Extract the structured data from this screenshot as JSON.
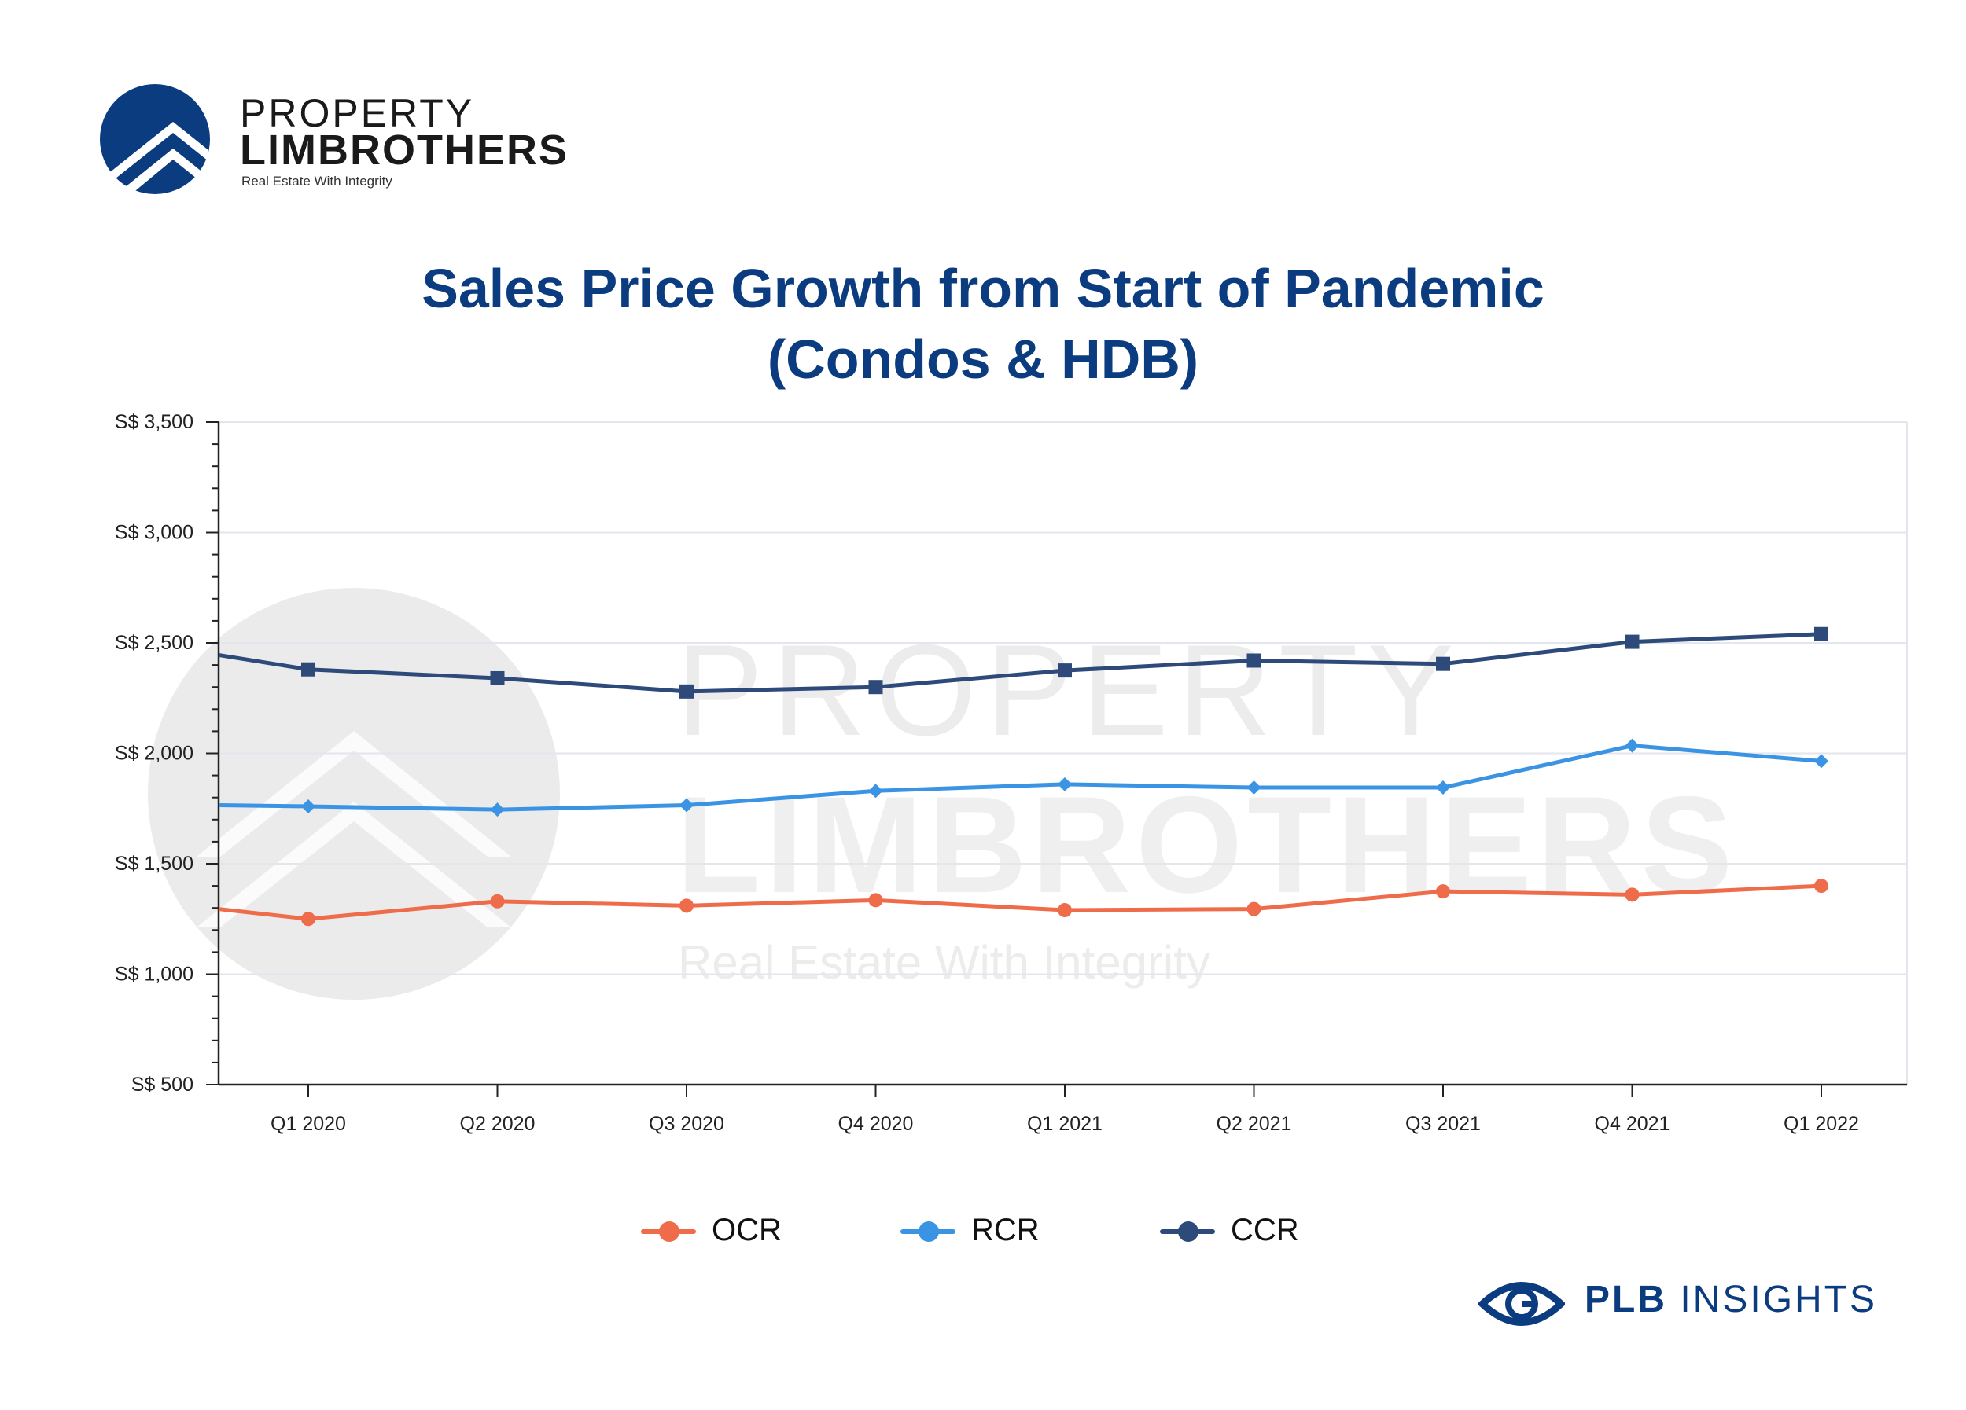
{
  "brand": {
    "name_line1": "PROPERTY",
    "name_line2": "LIMBROTHERS",
    "tagline": "Real Estate With Integrity",
    "watermark_line1": "PROPERTY",
    "watermark_line2": "LIMBROTHERS",
    "watermark_tagline": "Real Estate With Integrity",
    "color": "#0c3c80"
  },
  "insights": {
    "bold": "PLB",
    "rest": " INSIGHTS"
  },
  "chart_data": {
    "type": "line",
    "title": "Sales Price Growth from Start of Pandemic (Condos & HDB)",
    "title_lines": [
      "Sales Price Growth from Start of Pandemic",
      "(Condos & HDB)"
    ],
    "categories": [
      "Q1 2020",
      "Q2 2020",
      "Q3 2020",
      "Q4 2020",
      "Q1 2021",
      "Q2 2021",
      "Q3 2021",
      "Q4 2021",
      "Q1 2022"
    ],
    "y_ticks": [
      500,
      1000,
      1500,
      2000,
      2500,
      3000,
      3500
    ],
    "y_tick_labels": [
      "S$ 500",
      "S$ 1,000",
      "S$ 1,500",
      "S$ 2,000",
      "S$ 2,500",
      "S$ 3,000",
      "S$ 3,500"
    ],
    "ylim": [
      500,
      3500
    ],
    "grid": true,
    "legend_position": "bottom",
    "series": [
      {
        "name": "OCR",
        "color": "#ef6c4a",
        "marker": "circle",
        "start_value": 1295,
        "values": [
          1250,
          1330,
          1310,
          1335,
          1290,
          1295,
          1375,
          1360,
          1400
        ]
      },
      {
        "name": "RCR",
        "color": "#3b94e3",
        "marker": "diamond",
        "start_value": 1765,
        "values": [
          1760,
          1745,
          1765,
          1830,
          1860,
          1845,
          1845,
          2035,
          1965
        ]
      },
      {
        "name": "CCR",
        "color": "#2d4a7a",
        "marker": "square",
        "start_value": 2445,
        "values": [
          2380,
          2340,
          2280,
          2300,
          2375,
          2420,
          2405,
          2505,
          2540
        ]
      }
    ]
  }
}
